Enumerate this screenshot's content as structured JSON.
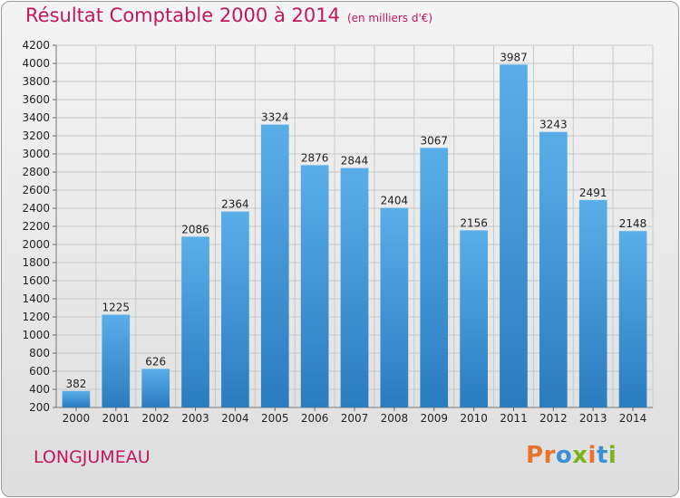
{
  "header": {
    "title": "Résultat Comptable 2000 à 2014",
    "unit": "(en milliers d'€)"
  },
  "footer": {
    "commune": "LONGJUMEAU",
    "logo": "Proxiti"
  },
  "colors": {
    "title": "#c2185b",
    "bar_top": "#5aaee8",
    "bar_bottom": "#2a7cc0",
    "logo_letters": [
      "#e8732a",
      "#e8732a",
      "#3a8fd6",
      "#7ab51d",
      "#e8732a",
      "#3a8fd6",
      "#7ab51d"
    ]
  },
  "chart_data": {
    "type": "bar",
    "title": "Résultat Comptable 2000 à 2014",
    "subtitle": "(en milliers d'€)",
    "xlabel": "",
    "ylabel": "",
    "categories": [
      "2000",
      "2001",
      "2002",
      "2003",
      "2004",
      "2005",
      "2006",
      "2007",
      "2008",
      "2009",
      "2010",
      "2011",
      "2012",
      "2013",
      "2014"
    ],
    "values": [
      382,
      1225,
      626,
      2086,
      2364,
      3324,
      2876,
      2844,
      2404,
      3067,
      2156,
      3987,
      3243,
      2491,
      2148
    ],
    "ylim": [
      200,
      4200
    ],
    "yticks": [
      200,
      400,
      600,
      800,
      1000,
      1200,
      1400,
      1600,
      1800,
      2000,
      2200,
      2400,
      2600,
      2800,
      3000,
      3200,
      3400,
      3600,
      3800,
      4000,
      4200
    ],
    "grid": true,
    "legend": "none"
  }
}
